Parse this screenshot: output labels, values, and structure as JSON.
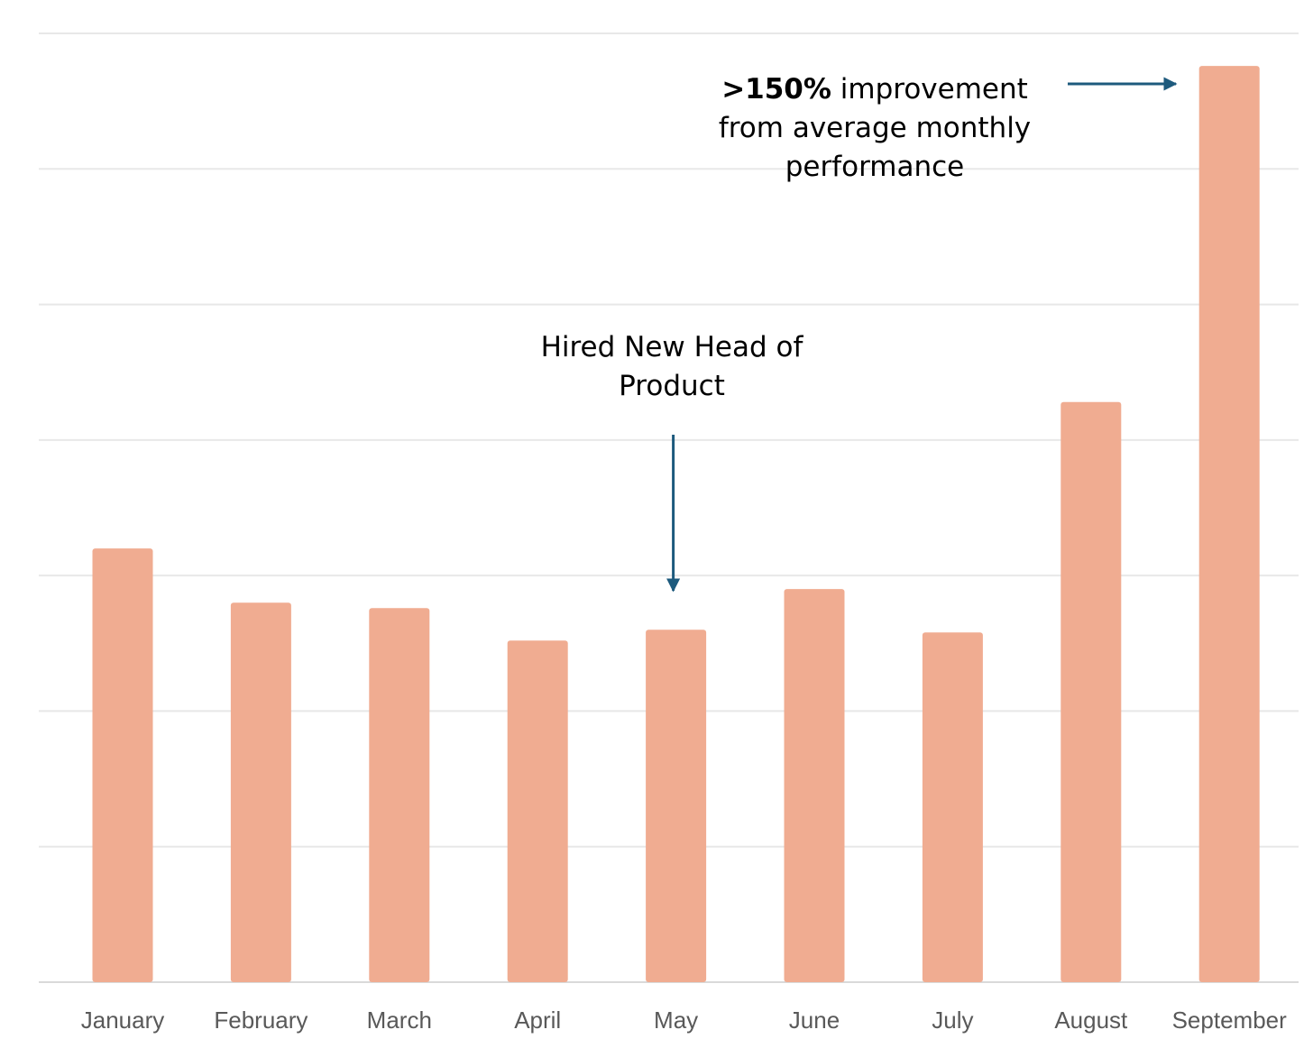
{
  "chart_data": {
    "type": "bar",
    "title": "",
    "xlabel": "",
    "ylabel": "",
    "categories": [
      "January",
      "February",
      "March",
      "April",
      "May",
      "June",
      "July",
      "August",
      "September"
    ],
    "values": [
      64,
      56,
      55.2,
      50.4,
      52,
      58,
      51.6,
      85.6,
      135.2
    ],
    "ylim": [
      0,
      140
    ],
    "grid": true,
    "legend": "none",
    "colors": {
      "bar": "#f0ac91",
      "gridline": "#e8e8e8",
      "axis": "#d9d9d9",
      "tick_label": "#595959",
      "annotation_arrow": "#1d5a7d"
    },
    "annotations": {
      "peak": {
        "bold": ">150%",
        "line1_rest": " improvement",
        "line2": "from average monthly",
        "line3": "performance",
        "target_category": "September"
      },
      "event": {
        "line1": "Hired New Head of",
        "line2": "Product",
        "target_category": "May"
      }
    }
  }
}
